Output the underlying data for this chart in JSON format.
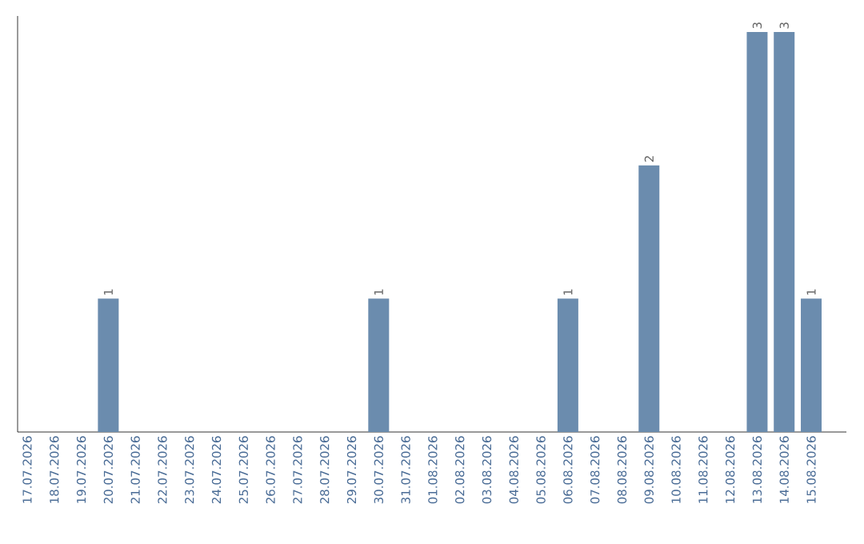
{
  "chart_data": {
    "type": "bar",
    "categories": [
      "17.07.2026",
      "18.07.2026",
      "19.07.2026",
      "20.07.2026",
      "21.07.2026",
      "22.07.2026",
      "23.07.2026",
      "24.07.2026",
      "25.07.2026",
      "26.07.2026",
      "27.07.2026",
      "28.07.2026",
      "29.07.2026",
      "30.07.2026",
      "31.07.2026",
      "01.08.2026",
      "02.08.2026",
      "03.08.2026",
      "04.08.2026",
      "05.08.2026",
      "06.08.2026",
      "07.08.2026",
      "08.08.2026",
      "09.08.2026",
      "10.08.2026",
      "11.08.2026",
      "12.08.2026",
      "13.08.2026",
      "14.08.2026",
      "15.08.2026"
    ],
    "values": [
      0,
      0,
      0,
      1,
      0,
      0,
      0,
      0,
      0,
      0,
      0,
      0,
      0,
      1,
      0,
      0,
      0,
      0,
      0,
      0,
      1,
      0,
      0,
      2,
      0,
      0,
      0,
      3,
      3,
      1
    ],
    "value_labels": [
      null,
      null,
      null,
      "1",
      null,
      null,
      null,
      null,
      null,
      null,
      null,
      null,
      null,
      "1",
      null,
      null,
      null,
      null,
      null,
      null,
      "1",
      null,
      null,
      "2",
      null,
      null,
      null,
      "3",
      "3",
      "1"
    ],
    "color": "#6b8cae",
    "grid": false
  }
}
